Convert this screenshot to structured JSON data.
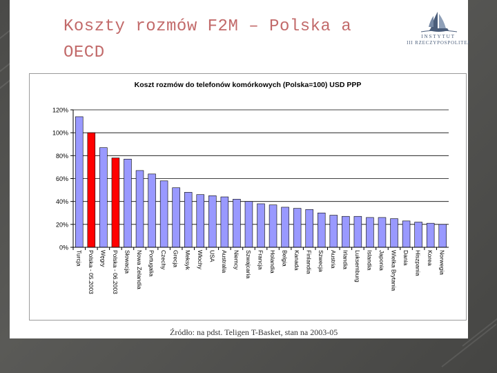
{
  "slide": {
    "title": "Koszty rozmów F2M – Polska a OECD",
    "logo": {
      "line1": "INSTYTUT",
      "line2": "III RZECZYPOSPOLITEJ"
    },
    "source_note": "Źródło: na pdst. Teligen T-Basket, stan na 2003-05"
  },
  "colors": {
    "bar_default": "#9999ff",
    "bar_highlight": "#ff0000",
    "title_color": "#c26a6a"
  },
  "chart_data": {
    "type": "bar",
    "title": "Koszt rozmów do telefonów komórkowych (Polska=100) USD PPP",
    "xlabel": "",
    "ylabel": "",
    "ylim": [
      0,
      120
    ],
    "yticks": [
      "0%",
      "20%",
      "40%",
      "60%",
      "80%",
      "100%",
      "120%"
    ],
    "grid": true,
    "legend": "none",
    "categories": [
      "Turcja",
      "Polska - 05.2003",
      "Węgry",
      "Polska - 06.2003",
      "Słowacja",
      "Nowa Zelandia",
      "Portugalia",
      "Czechy",
      "Grecja",
      "Meksyk",
      "Włochy",
      "USA",
      "Australia",
      "Niemcy",
      "Szwajcaria",
      "Francja",
      "Holandia",
      "Belgia",
      "Kanada",
      "Finlandia",
      "Szwecja",
      "Austria",
      "Irlandia",
      "Luksemburg",
      "Islandia",
      "Japonia",
      "Wielka Brytania",
      "Dania",
      "Hiszpania",
      "Korea",
      "Norwegia"
    ],
    "values": [
      114,
      100,
      87,
      78,
      77,
      67,
      64,
      58,
      52,
      48,
      46,
      45,
      44,
      42,
      40,
      38,
      37,
      35,
      34,
      33,
      30,
      28,
      27,
      27,
      26,
      26,
      25,
      23,
      22,
      21,
      20
    ],
    "highlighted": [
      1,
      3
    ]
  }
}
